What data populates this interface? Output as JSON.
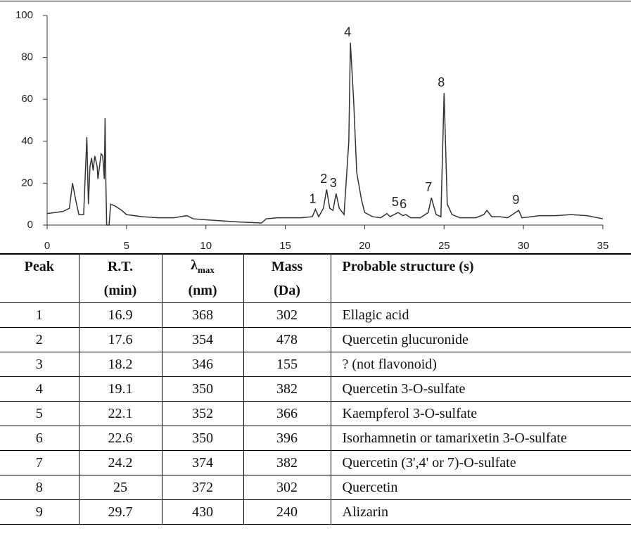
{
  "chart_data": {
    "type": "line",
    "color": "#333333",
    "x": [
      0,
      1.0,
      1.4,
      1.6,
      1.8,
      2.0,
      2.3,
      2.5,
      2.6,
      2.7,
      2.8,
      2.9,
      3.0,
      3.15,
      3.2,
      3.4,
      3.5,
      3.6,
      3.65,
      3.7,
      3.75,
      3.9,
      4.0,
      4.3,
      4.7,
      5.0,
      6,
      7,
      8,
      8.8,
      9.2,
      10,
      11,
      12,
      13.5,
      13.8,
      14.5,
      16,
      16.7,
      16.9,
      17.1,
      17.4,
      17.6,
      17.8,
      18.0,
      18.2,
      18.4,
      18.7,
      19.0,
      19.1,
      19.3,
      19.5,
      19.8,
      20,
      20.5,
      21,
      21.4,
      21.6,
      22.1,
      22.4,
      22.6,
      22.9,
      23.5,
      24.0,
      24.2,
      24.5,
      24.8,
      25,
      25.2,
      25.5,
      26,
      27,
      27.5,
      27.7,
      28,
      28.5,
      29,
      29.7,
      29.9,
      30.5,
      31,
      32,
      33,
      34,
      35
    ],
    "values": [
      5.5,
      6.5,
      8,
      20,
      12,
      5,
      5,
      42,
      10,
      28,
      32,
      26,
      33,
      28,
      22,
      34,
      33,
      22,
      51,
      20,
      0,
      0,
      10,
      9,
      7,
      5,
      4,
      3.5,
      3.5,
      4.5,
      3,
      2.5,
      2,
      1.5,
      1,
      3,
      3.5,
      3.5,
      4,
      7.5,
      4,
      8,
      17,
      8,
      7,
      15,
      8,
      5,
      40,
      87,
      60,
      25,
      12,
      6,
      4,
      3.5,
      5.5,
      4,
      6,
      4.5,
      5,
      3.5,
      3.5,
      6,
      13,
      5,
      4,
      63,
      10,
      5,
      3.5,
      3.5,
      5,
      7,
      4,
      4,
      3.5,
      7,
      3.5,
      4,
      4.5,
      4.5,
      5,
      4.5,
      3
    ],
    "xlim": [
      0,
      35
    ],
    "xticks": [
      0,
      5,
      10,
      15,
      20,
      25,
      30,
      35
    ],
    "ylim": [
      0,
      100
    ],
    "yticks": [
      0,
      20,
      40,
      60,
      80,
      100
    ],
    "annotations": [
      "1",
      "2",
      "3",
      "4",
      "5",
      "6",
      "7",
      "8",
      "9"
    ]
  },
  "table": {
    "header": [
      "Peak",
      "R.T.",
      {
        "text": "λ",
        "sub": "max"
      },
      "Mass",
      "Probable structure (s)"
    ],
    "units": [
      "(min)",
      "(nm)",
      "(Da)"
    ],
    "rows": [
      [
        1,
        16.9,
        368,
        302,
        "Ellagic acid"
      ],
      [
        2,
        17.6,
        354,
        478,
        "Quercetin glucuronide"
      ],
      [
        3,
        18.2,
        346,
        155,
        "? (not flavonoid)"
      ],
      [
        4,
        19.1,
        350,
        382,
        "Quercetin 3-O-sulfate"
      ],
      [
        5,
        22.1,
        352,
        366,
        "Kaempferol 3-O-sulfate"
      ],
      [
        6,
        22.6,
        350,
        396,
        "Isorhamnetin or tamarixetin 3-O-sulfate"
      ],
      [
        7,
        24.2,
        374,
        382,
        "Quercetin (3',4' or 7)-O-sulfate"
      ],
      [
        8,
        25,
        372,
        302,
        "Quercetin"
      ],
      [
        9,
        29.7,
        430,
        240,
        "Alizarin"
      ]
    ]
  }
}
